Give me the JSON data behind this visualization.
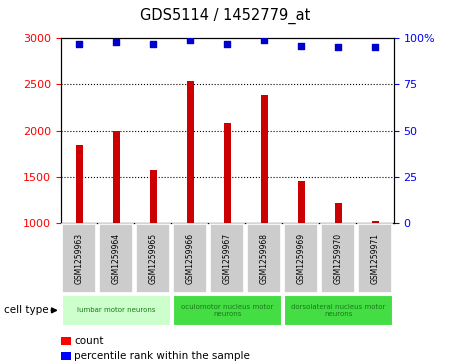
{
  "title": "GDS5114 / 1452779_at",
  "samples": [
    "GSM1259963",
    "GSM1259964",
    "GSM1259965",
    "GSM1259966",
    "GSM1259967",
    "GSM1259968",
    "GSM1259969",
    "GSM1259970",
    "GSM1259971"
  ],
  "counts": [
    1850,
    2000,
    1570,
    2540,
    2080,
    2390,
    1460,
    1215,
    1020
  ],
  "percentiles": [
    97,
    98,
    97,
    99,
    97,
    99,
    96,
    95,
    95
  ],
  "ylim_left": [
    1000,
    3000
  ],
  "ylim_right": [
    0,
    100
  ],
  "yticks_left": [
    1000,
    1500,
    2000,
    2500,
    3000
  ],
  "yticks_right": [
    0,
    25,
    50,
    75,
    100
  ],
  "bar_color": "#cc0000",
  "dot_color": "#0000cc",
  "bar_width": 0.18,
  "group_ranges": [
    [
      0,
      3
    ],
    [
      3,
      6
    ],
    [
      6,
      9
    ]
  ],
  "group_colors": [
    "#ccffcc",
    "#44dd44",
    "#44dd44"
  ],
  "group_labels": [
    "lumbar motor neurons",
    "oculomotor nucleus motor\nneurons",
    "dorsolateral nucleus motor\nneurons"
  ],
  "sample_box_color": "#cccccc",
  "cell_type_label": "cell type",
  "legend_count_label": "count",
  "legend_percentile_label": "percentile rank within the sample"
}
